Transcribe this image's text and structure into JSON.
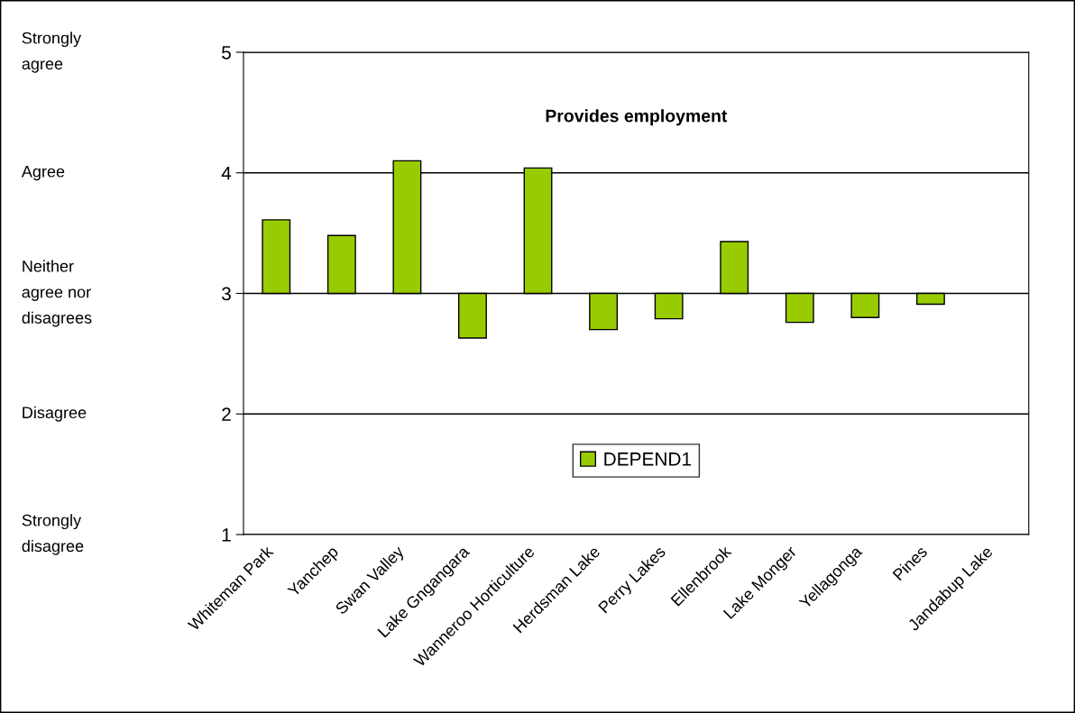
{
  "chart_data": {
    "type": "bar",
    "title": "Provides employment",
    "categories": [
      "Whiteman Park",
      "Yanchep",
      "Swan Valley",
      "Lake Gngangara",
      "Wanneroo Horticulture",
      "Herdsman Lake",
      "Perry Lakes",
      "Ellenbrook",
      "Lake Monger",
      "Yellagonga",
      "Pines",
      "Jandabup Lake"
    ],
    "series": [
      {
        "name": "DEPEND1",
        "color": "#99cc00",
        "values": [
          0.61,
          0.48,
          1.1,
          -0.37,
          1.04,
          -0.3,
          -0.21,
          0.43,
          -0.24,
          -0.2,
          -0.09,
          null
        ],
        "base": [
          3,
          3,
          3,
          3,
          3,
          3,
          3,
          3,
          3,
          3,
          3,
          null
        ]
      }
    ],
    "ylim": [
      1,
      5
    ],
    "yticks": [
      1,
      2,
      3,
      4,
      5
    ],
    "annotations": [
      "Strongly\ndisagree",
      "Disagree",
      "Neither\nagree nor\ndisagrees",
      "Agree",
      "Strongly\nagree"
    ],
    "grid": "y",
    "legend": "bottom"
  }
}
